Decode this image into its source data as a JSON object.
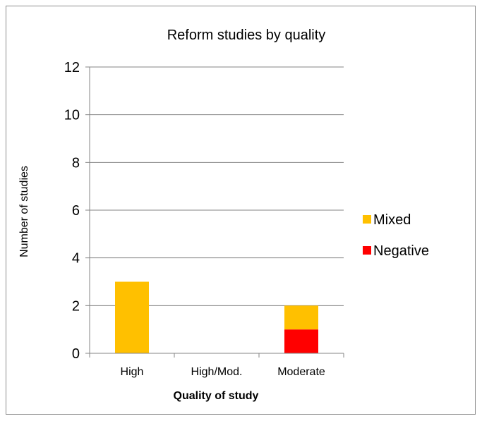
{
  "chart_data": {
    "type": "bar",
    "stacked": true,
    "title": "Reform studies by quality",
    "xlabel": "Quality of study",
    "ylabel": "Number of studies",
    "categories": [
      "High",
      "High/Mod.",
      "Moderate"
    ],
    "ylim": [
      0,
      12
    ],
    "yticks": [
      0,
      2,
      4,
      6,
      8,
      10,
      12
    ],
    "grid": true,
    "legend_position": "right",
    "series": [
      {
        "name": "Negative",
        "color": "#ff0000",
        "values": [
          0,
          0,
          1
        ]
      },
      {
        "name": "Mixed",
        "color": "#ffc000",
        "values": [
          3,
          0,
          1
        ]
      }
    ],
    "legend_order": [
      "Mixed",
      "Negative"
    ]
  }
}
